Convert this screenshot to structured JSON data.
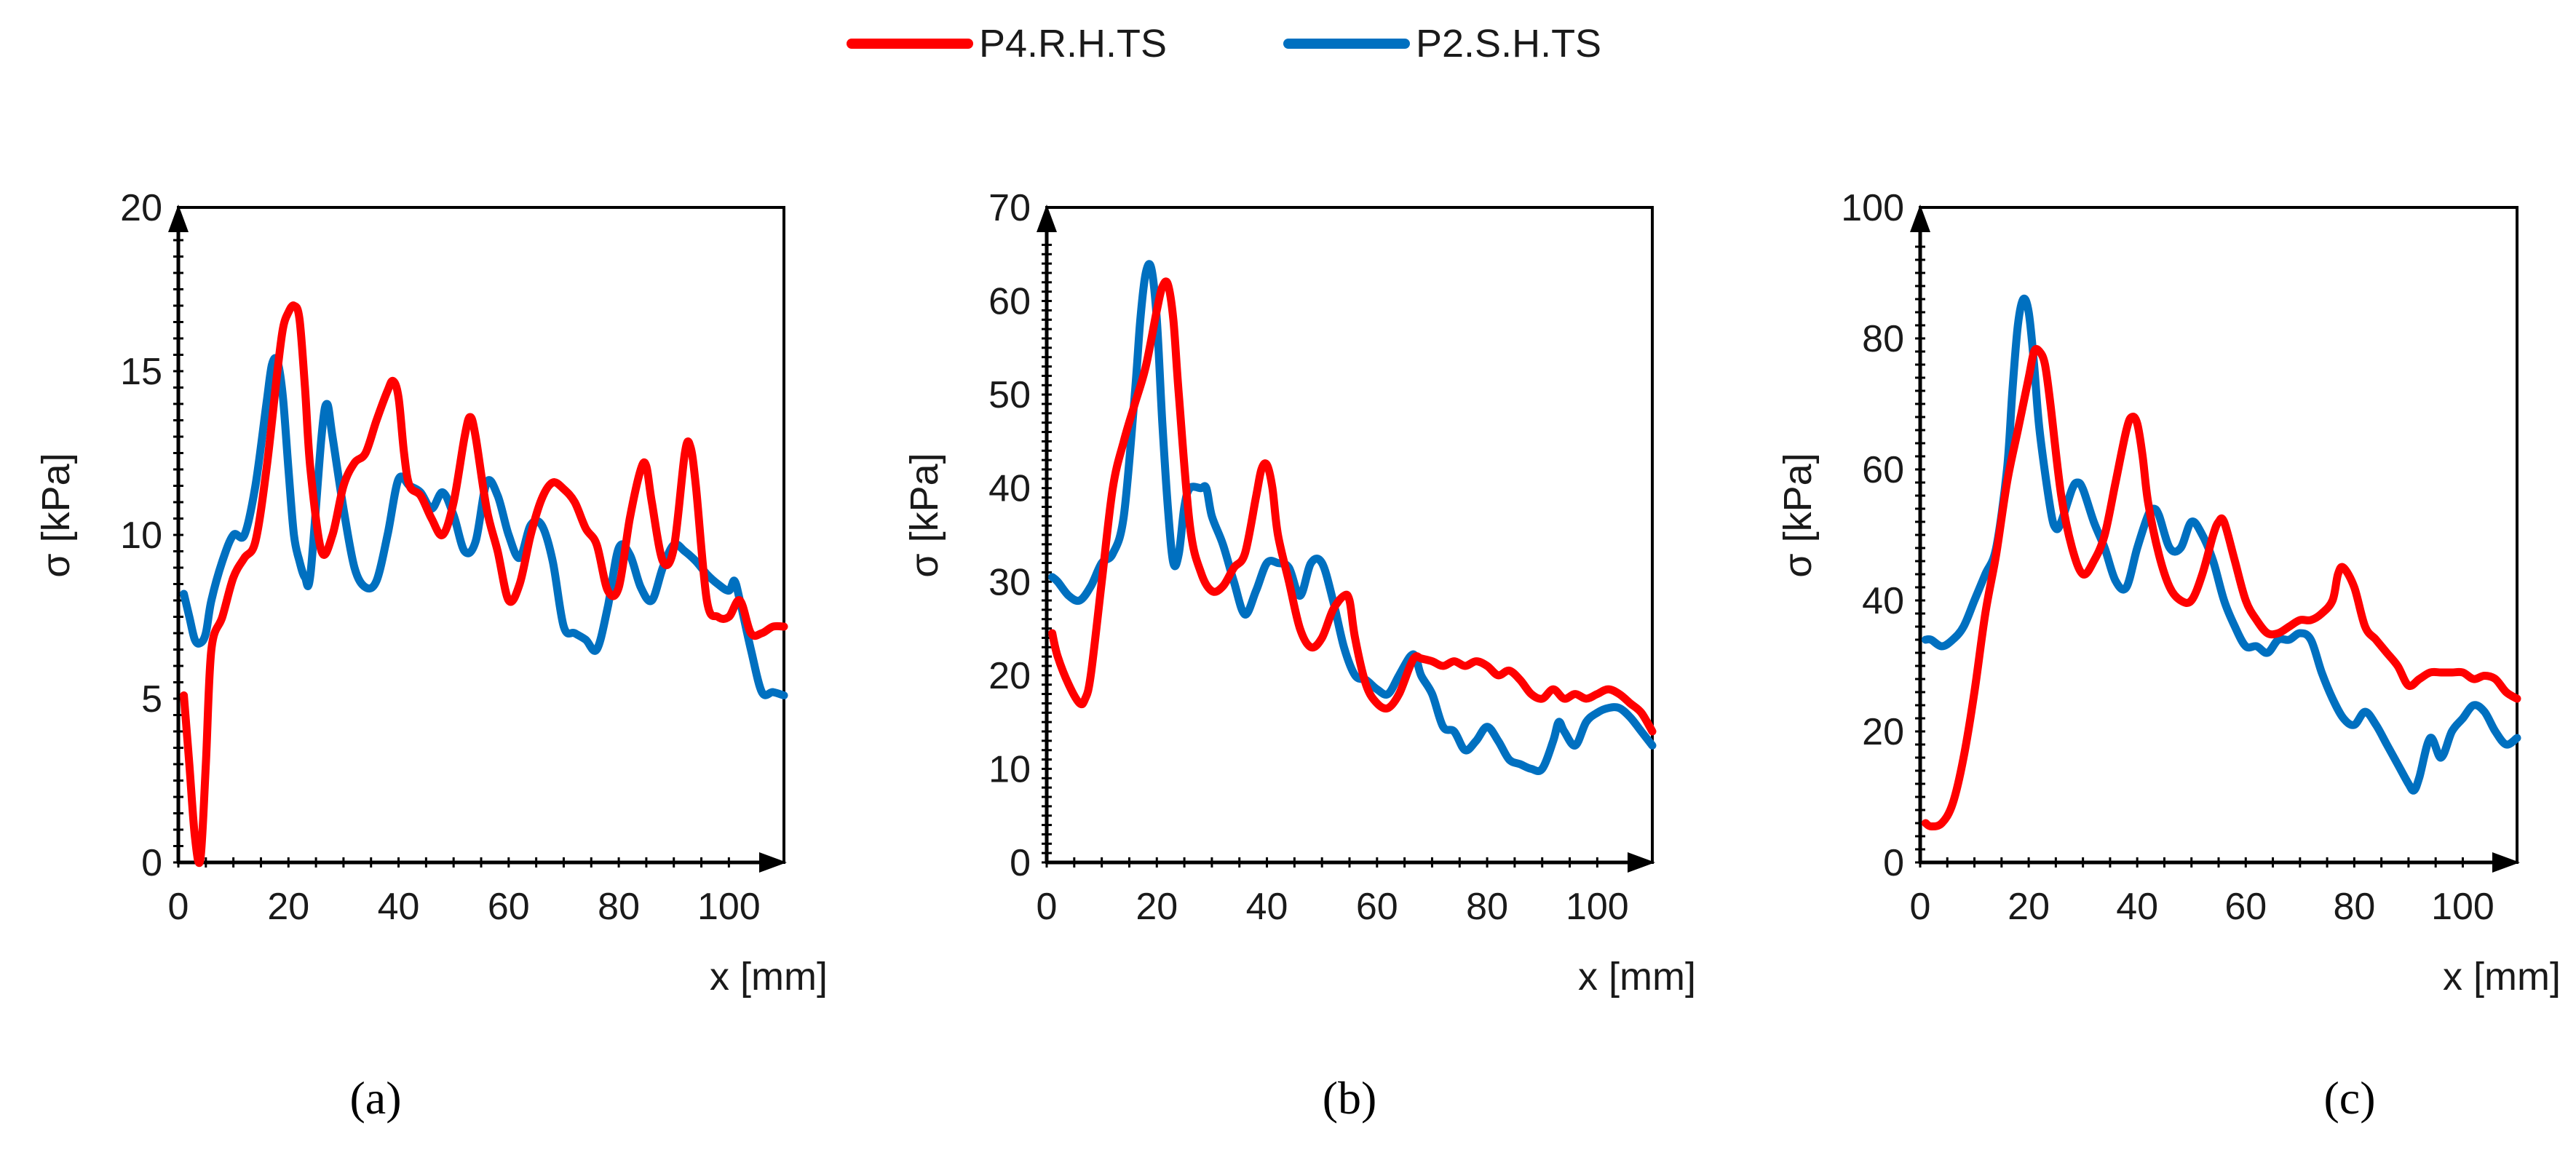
{
  "legend": [
    {
      "name": "P4.R.H.TS",
      "color": "#ff0000"
    },
    {
      "name": "P2.S.H.TS",
      "color": "#0070c0"
    }
  ],
  "chart_data": [
    {
      "type": "line",
      "panel_label": "(a)",
      "title": "",
      "xlabel": "x [mm]",
      "ylabel": "σ [kPa]",
      "xlim": [
        0,
        110
      ],
      "ylim": [
        0,
        20
      ],
      "xticks": [
        0,
        20,
        40,
        60,
        80,
        100
      ],
      "yticks": [
        0,
        5,
        10,
        15,
        20
      ],
      "series": [
        {
          "name": "P4.R.H.TS",
          "color": "#ff0000",
          "x": [
            1,
            2,
            3,
            4,
            5,
            6,
            8,
            10,
            12,
            14,
            16,
            18,
            19,
            20,
            21,
            22,
            23,
            24,
            26,
            28,
            30,
            32,
            34,
            36,
            38,
            39,
            40,
            41,
            42,
            44,
            46,
            48,
            50,
            52,
            53,
            54,
            56,
            58,
            60,
            62,
            64,
            66,
            68,
            70,
            72,
            74,
            76,
            78,
            80,
            82,
            84,
            85,
            86,
            88,
            90,
            92,
            93,
            94,
            96,
            98,
            100,
            102,
            104,
            106,
            108,
            110
          ],
          "y": [
            5.1,
            3,
            0.8,
            0.1,
            3,
            6.5,
            7.5,
            8.7,
            9.3,
            9.8,
            12,
            15,
            16.3,
            16.8,
            17,
            16.6,
            14.5,
            12,
            9.5,
            10,
            11.5,
            12.2,
            12.5,
            13.5,
            14.4,
            14.7,
            14.2,
            12.5,
            11.5,
            11.2,
            10.5,
            10,
            11,
            13,
            13.6,
            13,
            10.8,
            9.5,
            8,
            8.5,
            10,
            11.1,
            11.6,
            11.4,
            11,
            10.2,
            9.7,
            8.3,
            8.4,
            10.5,
            12,
            12.1,
            11,
            9.2,
            9.6,
            12.5,
            12.7,
            11.5,
            8,
            7.5,
            7.5,
            8,
            7,
            7,
            7.2,
            7.2
          ]
        },
        {
          "name": "P2.S.H.TS",
          "color": "#0070c0",
          "x": [
            1,
            2,
            3,
            4,
            5,
            6,
            8,
            10,
            12,
            14,
            16,
            17,
            18,
            19,
            20,
            21,
            22,
            23,
            24,
            26,
            27,
            28,
            30,
            32,
            34,
            36,
            38,
            40,
            42,
            44,
            46,
            48,
            50,
            52,
            54,
            56,
            58,
            60,
            62,
            64,
            66,
            68,
            70,
            72,
            74,
            76,
            78,
            80,
            82,
            84,
            86,
            88,
            90,
            92,
            94,
            96,
            98,
            100,
            101,
            102,
            104,
            106,
            108,
            110
          ],
          "y": [
            8.2,
            7.5,
            6.8,
            6.7,
            7,
            8,
            9.2,
            10,
            10,
            11.5,
            14,
            15.2,
            15.3,
            14.2,
            12,
            10,
            9.2,
            8.7,
            8.8,
            13,
            14,
            13,
            10.8,
            9,
            8.4,
            8.6,
            10,
            11.7,
            11.5,
            11.3,
            10.8,
            11.3,
            10.6,
            9.5,
            9.8,
            11.6,
            11.2,
            10,
            9.3,
            10.3,
            10.3,
            9.2,
            7.2,
            7,
            6.8,
            6.5,
            7.8,
            9.6,
            9.4,
            8.4,
            8,
            9,
            9.7,
            9.5,
            9.2,
            8.8,
            8.5,
            8.3,
            8.6,
            8,
            6.5,
            5.2,
            5.2,
            5.1
          ]
        }
      ]
    },
    {
      "type": "line",
      "panel_label": "(b)",
      "title": "",
      "xlabel": "x [mm]",
      "ylabel": "σ [kPa]",
      "xlim": [
        0,
        110
      ],
      "ylim": [
        0,
        70
      ],
      "xticks": [
        0,
        20,
        40,
        60,
        80,
        100
      ],
      "yticks": [
        0,
        10,
        20,
        30,
        40,
        50,
        60,
        70
      ],
      "series": [
        {
          "name": "P4.R.H.TS",
          "color": "#ff0000",
          "x": [
            1,
            2,
            4,
            6,
            7,
            8,
            10,
            12,
            14,
            16,
            18,
            20,
            21,
            22,
            23,
            24,
            26,
            28,
            30,
            32,
            34,
            36,
            38,
            39,
            40,
            41,
            42,
            44,
            46,
            48,
            50,
            52,
            54,
            55,
            56,
            58,
            60,
            62,
            64,
            66,
            67,
            68,
            70,
            72,
            74,
            76,
            78,
            80,
            82,
            84,
            86,
            88,
            90,
            92,
            94,
            96,
            98,
            100,
            102,
            104,
            106,
            108,
            110
          ],
          "y": [
            24.5,
            22,
            19,
            17,
            17.5,
            20,
            30,
            40,
            45,
            49,
            53,
            59,
            61.5,
            61.8,
            58,
            50,
            36,
            31,
            29,
            29.5,
            31.5,
            33,
            39,
            42,
            42.5,
            40,
            35,
            30,
            25,
            23,
            24,
            27,
            28.5,
            28,
            24,
            19,
            17,
            16.5,
            18,
            21,
            22,
            21.8,
            21.5,
            21,
            21.5,
            21,
            21.5,
            21,
            20,
            20.5,
            19.5,
            18,
            17.5,
            18.5,
            17.5,
            18,
            17.5,
            18,
            18.5,
            18,
            17,
            16,
            14
          ]
        },
        {
          "name": "P2.S.H.TS",
          "color": "#0070c0",
          "x": [
            1,
            2,
            4,
            6,
            8,
            10,
            12,
            14,
            16,
            17,
            18,
            19,
            20,
            21,
            22,
            23,
            24,
            25,
            26,
            28,
            29,
            30,
            32,
            34,
            36,
            38,
            40,
            42,
            44,
            46,
            48,
            50,
            52,
            54,
            56,
            58,
            60,
            62,
            64,
            66,
            67,
            68,
            70,
            72,
            74,
            76,
            78,
            80,
            82,
            84,
            86,
            88,
            90,
            92,
            93,
            94,
            96,
            98,
            100,
            102,
            104,
            106,
            108,
            110
          ],
          "y": [
            30.5,
            30,
            28.5,
            28,
            29.5,
            32,
            33,
            37,
            50,
            58,
            63,
            63.5,
            58,
            47,
            38,
            32,
            33,
            38,
            40,
            40,
            40,
            37,
            34,
            30,
            26.5,
            29,
            32,
            32,
            31.5,
            28.5,
            32,
            32,
            28,
            23,
            20,
            19.5,
            18.5,
            18,
            20,
            22,
            22,
            20,
            18,
            14.5,
            14,
            12,
            13,
            14.5,
            13,
            11,
            10.5,
            10,
            10,
            13,
            15,
            14,
            12.5,
            15,
            16,
            16.5,
            16.5,
            15.5,
            14,
            12.5
          ]
        }
      ]
    },
    {
      "type": "line",
      "panel_label": "(c)",
      "title": "",
      "xlabel": "x [mm]",
      "ylabel": "σ [kPa]",
      "xlim": [
        0,
        110
      ],
      "ylim": [
        0,
        100
      ],
      "xticks": [
        0,
        20,
        40,
        60,
        80,
        100
      ],
      "yticks": [
        0,
        20,
        40,
        60,
        80,
        100
      ],
      "series": [
        {
          "name": "P4.R.H.TS",
          "color": "#ff0000",
          "x": [
            1,
            2,
            4,
            6,
            8,
            10,
            12,
            14,
            16,
            18,
            20,
            21,
            22,
            23,
            24,
            26,
            28,
            30,
            32,
            34,
            36,
            38,
            39,
            40,
            41,
            42,
            44,
            46,
            48,
            50,
            52,
            54,
            55,
            56,
            58,
            60,
            62,
            64,
            66,
            68,
            70,
            72,
            74,
            76,
            77,
            78,
            80,
            82,
            84,
            86,
            88,
            90,
            92,
            94,
            96,
            98,
            100,
            102,
            104,
            106,
            108,
            110
          ],
          "y": [
            6,
            5.5,
            6,
            9,
            16,
            26,
            38,
            47,
            58,
            66,
            74,
            78,
            78,
            76,
            70,
            56,
            48,
            44,
            46,
            50,
            58,
            66,
            68,
            67,
            62,
            55,
            47,
            42,
            40,
            40,
            44,
            50,
            52,
            52,
            46,
            40,
            37,
            35,
            35,
            36,
            37,
            37,
            38,
            40,
            44,
            45,
            42,
            36,
            34,
            32,
            30,
            27,
            28,
            29,
            29,
            29,
            29,
            28,
            28.5,
            28,
            26,
            25
          ]
        },
        {
          "name": "P2.S.H.TS",
          "color": "#0070c0",
          "x": [
            1,
            2,
            4,
            6,
            8,
            10,
            12,
            14,
            16,
            17,
            18,
            19,
            20,
            21,
            22,
            24,
            25,
            26,
            28,
            29,
            30,
            32,
            34,
            36,
            38,
            40,
            42,
            43,
            44,
            46,
            48,
            50,
            52,
            54,
            56,
            58,
            60,
            62,
            64,
            66,
            68,
            70,
            72,
            74,
            76,
            78,
            80,
            82,
            84,
            86,
            88,
            90,
            91,
            92,
            94,
            96,
            98,
            100,
            102,
            104,
            106,
            108,
            110
          ],
          "y": [
            34,
            34,
            33,
            34,
            36,
            40,
            44,
            48,
            60,
            72,
            82,
            86,
            84,
            76,
            66,
            54,
            51,
            52,
            57,
            58,
            57,
            52,
            48,
            43,
            42,
            48,
            53,
            54,
            53,
            48,
            48,
            52,
            50,
            46,
            40,
            36,
            33,
            33,
            32,
            34,
            34,
            35,
            34,
            29,
            25,
            22,
            21,
            23,
            21,
            18,
            15,
            12,
            11,
            13,
            19,
            16,
            20,
            22,
            24,
            23,
            20,
            18,
            19
          ]
        }
      ]
    }
  ]
}
